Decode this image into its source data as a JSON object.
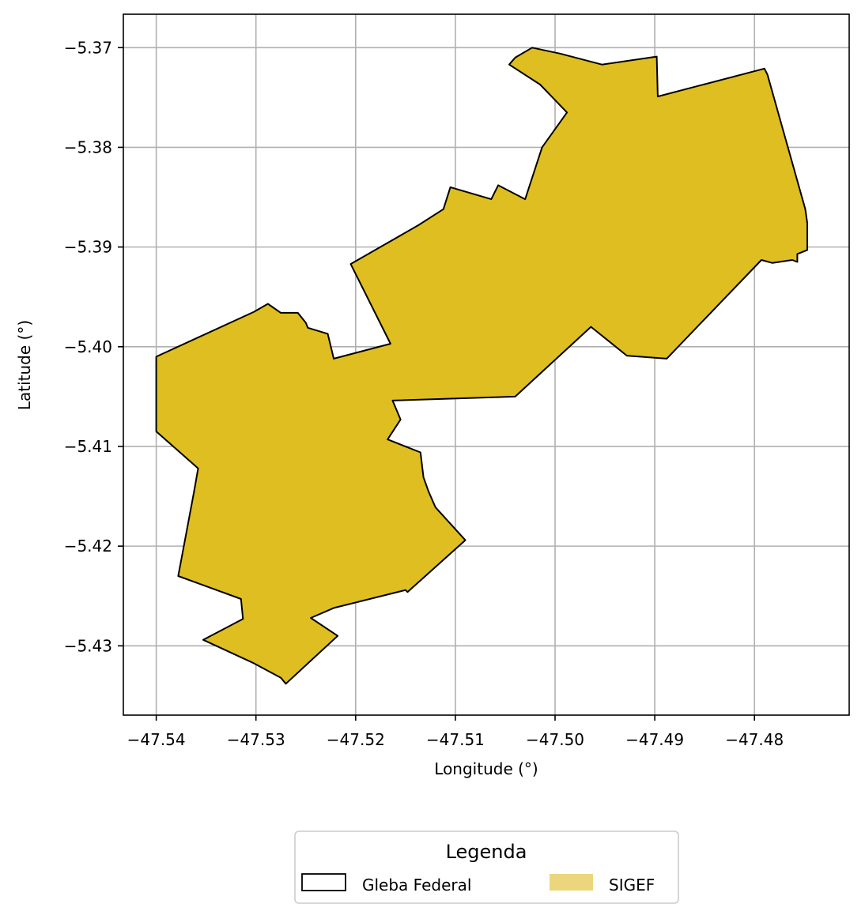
{
  "chart_data": {
    "type": "map",
    "xlabel": "Longitude (°)",
    "ylabel": "Latitude (°)",
    "xlim": [
      -47.5433,
      -47.4705
    ],
    "ylim": [
      -5.43695,
      -5.36665
    ],
    "grid": true,
    "xticks": [
      {
        "value": -47.54,
        "label": "−47.54"
      },
      {
        "value": -47.53,
        "label": "−47.53"
      },
      {
        "value": -47.52,
        "label": "−47.52"
      },
      {
        "value": -47.51,
        "label": "−47.51"
      },
      {
        "value": -47.5,
        "label": "−47.50"
      },
      {
        "value": -47.49,
        "label": "−47.49"
      },
      {
        "value": -47.48,
        "label": "−47.48"
      }
    ],
    "yticks": [
      {
        "value": -5.37,
        "label": "−5.37"
      },
      {
        "value": -5.38,
        "label": "−5.38"
      },
      {
        "value": -5.39,
        "label": "−5.39"
      },
      {
        "value": -5.4,
        "label": "−5.40"
      },
      {
        "value": -5.41,
        "label": "−5.41"
      },
      {
        "value": -5.42,
        "label": "−5.42"
      },
      {
        "value": -5.43,
        "label": "−5.43"
      }
    ],
    "colors": {
      "sigef_fill": "#debe21",
      "outline": "#000000",
      "grid": "#b0b0b0",
      "legend_sigef_patch": "#ebd67d"
    },
    "series": [
      {
        "name": "Gleba Federal",
        "type": "polygon-outline",
        "coordinates": [
          [
            -47.5105,
            -5.384
          ],
          [
            -47.5064,
            -5.3852
          ],
          [
            -47.5057,
            -5.3838
          ],
          [
            -47.503,
            -5.3852
          ],
          [
            -47.5013,
            -5.38
          ],
          [
            -47.4988,
            -5.3765
          ],
          [
            -47.5015,
            -5.3737
          ],
          [
            -47.5046,
            -5.3717
          ],
          [
            -47.504,
            -5.371
          ],
          [
            -47.5023,
            -5.37
          ],
          [
            -47.4995,
            -5.3706
          ],
          [
            -47.4953,
            -5.3717
          ],
          [
            -47.4898,
            -5.3709
          ],
          [
            -47.4897,
            -5.3749
          ],
          [
            -47.479,
            -5.3721
          ],
          [
            -47.4787,
            -5.3727
          ],
          [
            -47.4749,
            -5.3862
          ],
          [
            -47.4747,
            -5.3876
          ],
          [
            -47.4747,
            -5.3903
          ],
          [
            -47.4757,
            -5.3907
          ],
          [
            -47.4757,
            -5.3915
          ],
          [
            -47.4762,
            -5.3913
          ],
          [
            -47.4782,
            -5.3916
          ],
          [
            -47.4793,
            -5.3913
          ],
          [
            -47.4888,
            -5.4012
          ],
          [
            -47.4928,
            -5.4009
          ],
          [
            -47.4964,
            -5.398
          ],
          [
            -47.504,
            -5.405
          ],
          [
            -47.5163,
            -5.4054
          ],
          [
            -47.5155,
            -5.4073
          ],
          [
            -47.5168,
            -5.4093
          ],
          [
            -47.5135,
            -5.4106
          ],
          [
            -47.5132,
            -5.4131
          ],
          [
            -47.5127,
            -5.4145
          ],
          [
            -47.512,
            -5.4161
          ],
          [
            -47.509,
            -5.4194
          ],
          [
            -47.5148,
            -5.4246
          ],
          [
            -47.515,
            -5.4244
          ],
          [
            -47.5222,
            -5.4262
          ],
          [
            -47.5245,
            -5.4272
          ],
          [
            -47.5218,
            -5.429
          ],
          [
            -47.527,
            -5.4338
          ],
          [
            -47.5275,
            -5.4332
          ],
          [
            -47.5292,
            -5.4323
          ],
          [
            -47.5303,
            -5.4317
          ],
          [
            -47.5353,
            -5.4294
          ],
          [
            -47.5313,
            -5.4273
          ],
          [
            -47.5315,
            -5.4253
          ],
          [
            -47.5378,
            -5.423
          ],
          [
            -47.5362,
            -5.4145
          ],
          [
            -47.5358,
            -5.4122
          ],
          [
            -47.54,
            -5.4085
          ],
          [
            -47.54,
            -5.401
          ],
          [
            -47.5302,
            -5.3965
          ],
          [
            -47.5288,
            -5.3957
          ],
          [
            -47.5275,
            -5.3966
          ],
          [
            -47.5258,
            -5.3966
          ],
          [
            -47.525,
            -5.3976
          ],
          [
            -47.5248,
            -5.3981
          ],
          [
            -47.5228,
            -5.3987
          ],
          [
            -47.5222,
            -5.4012
          ],
          [
            -47.5165,
            -5.3997
          ],
          [
            -47.5205,
            -5.3917
          ],
          [
            -47.5137,
            -5.3878
          ],
          [
            -47.5112,
            -5.3862
          ]
        ]
      },
      {
        "name": "SIGEF",
        "type": "polygon-fill",
        "coordinates": "same as Gleba Federal"
      }
    ],
    "legend": {
      "title": "Legenda",
      "placement": "bottom-center",
      "entries": [
        {
          "label": "Gleba Federal",
          "style": "outline"
        },
        {
          "label": "SIGEF",
          "style": "filled"
        }
      ]
    }
  }
}
